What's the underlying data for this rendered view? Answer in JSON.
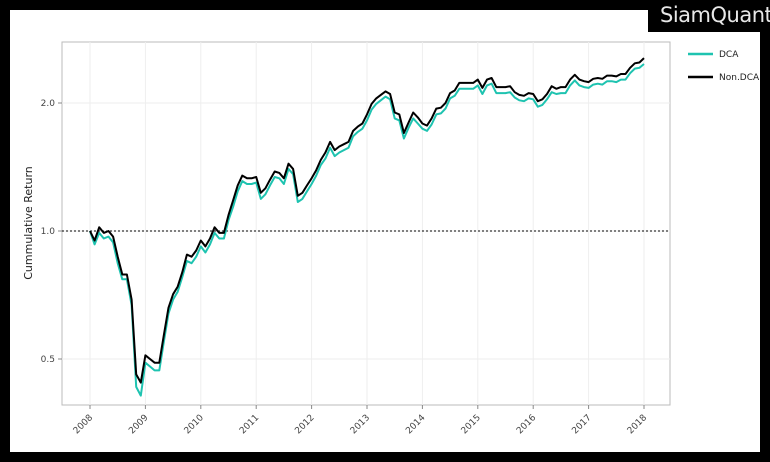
{
  "brand": "SiamQuant",
  "colors": {
    "DCA": "#1ec3b0",
    "Non.DCA": "#000000"
  },
  "chart_data": {
    "type": "line",
    "title": "",
    "xlabel": "",
    "ylabel": "Cummulative Return",
    "y_scale": "log",
    "ylim": [
      0.36,
      2.75
    ],
    "xlim": [
      "2007-07",
      "2018-07"
    ],
    "grid": true,
    "legend": "right",
    "reference_line": {
      "y": 1.0,
      "style": "dashed"
    },
    "x_ticks": [
      "2008",
      "2009",
      "2010",
      "2011",
      "2012",
      "2013",
      "2014",
      "2015",
      "2016",
      "2017",
      "2018"
    ],
    "y_ticks": [
      {
        "value": 0.5,
        "label": "0.5"
      },
      {
        "value": 1.0,
        "label": "1.0"
      },
      {
        "value": 2.0,
        "label": "2.0"
      }
    ],
    "x": [
      "2008-01",
      "2008-02",
      "2008-03",
      "2008-04",
      "2008-05",
      "2008-06",
      "2008-07",
      "2008-08",
      "2008-09",
      "2008-10",
      "2008-11",
      "2008-12",
      "2009-01",
      "2009-02",
      "2009-03",
      "2009-04",
      "2009-05",
      "2009-06",
      "2009-07",
      "2009-08",
      "2009-09",
      "2009-10",
      "2009-11",
      "2009-12",
      "2010-01",
      "2010-02",
      "2010-03",
      "2010-04",
      "2010-05",
      "2010-06",
      "2010-07",
      "2010-08",
      "2010-09",
      "2010-10",
      "2010-11",
      "2010-12",
      "2011-01",
      "2011-02",
      "2011-03",
      "2011-04",
      "2011-05",
      "2011-06",
      "2011-07",
      "2011-08",
      "2011-09",
      "2011-10",
      "2011-11",
      "2011-12",
      "2012-01",
      "2012-02",
      "2012-03",
      "2012-04",
      "2012-05",
      "2012-06",
      "2012-07",
      "2012-08",
      "2012-09",
      "2012-10",
      "2012-11",
      "2012-12",
      "2013-01",
      "2013-02",
      "2013-03",
      "2013-04",
      "2013-05",
      "2013-06",
      "2013-07",
      "2013-08",
      "2013-09",
      "2013-10",
      "2013-11",
      "2013-12",
      "2014-01",
      "2014-02",
      "2014-03",
      "2014-04",
      "2014-05",
      "2014-06",
      "2014-07",
      "2014-08",
      "2014-09",
      "2014-10",
      "2014-11",
      "2014-12",
      "2015-01",
      "2015-02",
      "2015-03",
      "2015-04",
      "2015-05",
      "2015-06",
      "2015-07",
      "2015-08",
      "2015-09",
      "2015-10",
      "2015-11",
      "2015-12",
      "2016-01",
      "2016-02",
      "2016-03",
      "2016-04",
      "2016-05",
      "2016-06",
      "2016-07",
      "2016-08",
      "2016-09",
      "2016-10",
      "2016-11",
      "2016-12",
      "2017-01",
      "2017-02",
      "2017-03",
      "2017-04",
      "2017-05",
      "2017-06",
      "2017-07",
      "2017-08",
      "2017-09",
      "2017-10",
      "2017-11",
      "2017-12",
      "2018-01"
    ],
    "series": [
      {
        "name": "DCA",
        "values": [
          1.0,
          0.93,
          0.99,
          0.96,
          0.97,
          0.94,
          0.84,
          0.77,
          0.77,
          0.67,
          0.43,
          0.41,
          0.49,
          0.48,
          0.47,
          0.47,
          0.55,
          0.64,
          0.69,
          0.72,
          0.78,
          0.85,
          0.84,
          0.87,
          0.92,
          0.89,
          0.93,
          0.99,
          0.96,
          0.96,
          1.06,
          1.14,
          1.24,
          1.31,
          1.29,
          1.29,
          1.3,
          1.19,
          1.22,
          1.28,
          1.34,
          1.33,
          1.29,
          1.4,
          1.36,
          1.17,
          1.19,
          1.24,
          1.29,
          1.35,
          1.43,
          1.48,
          1.57,
          1.5,
          1.53,
          1.55,
          1.57,
          1.67,
          1.71,
          1.74,
          1.82,
          1.93,
          1.99,
          2.03,
          2.07,
          2.04,
          1.84,
          1.82,
          1.65,
          1.75,
          1.84,
          1.79,
          1.74,
          1.72,
          1.78,
          1.88,
          1.89,
          1.94,
          2.05,
          2.08,
          2.16,
          2.16,
          2.16,
          2.16,
          2.2,
          2.1,
          2.2,
          2.22,
          2.11,
          2.11,
          2.11,
          2.12,
          2.06,
          2.03,
          2.02,
          2.05,
          2.04,
          1.96,
          1.98,
          2.04,
          2.12,
          2.1,
          2.11,
          2.11,
          2.2,
          2.26,
          2.2,
          2.18,
          2.17,
          2.21,
          2.22,
          2.21,
          2.25,
          2.25,
          2.24,
          2.27,
          2.27,
          2.35,
          2.41,
          2.42,
          2.47
        ]
      },
      {
        "name": "Non.DCA",
        "values": [
          1.0,
          0.95,
          1.02,
          0.99,
          1.0,
          0.97,
          0.87,
          0.79,
          0.79,
          0.69,
          0.46,
          0.44,
          0.51,
          0.5,
          0.49,
          0.49,
          0.57,
          0.66,
          0.71,
          0.74,
          0.8,
          0.88,
          0.87,
          0.9,
          0.95,
          0.92,
          0.96,
          1.02,
          0.99,
          0.99,
          1.09,
          1.18,
          1.28,
          1.35,
          1.33,
          1.33,
          1.34,
          1.23,
          1.26,
          1.32,
          1.38,
          1.37,
          1.33,
          1.44,
          1.4,
          1.21,
          1.23,
          1.28,
          1.33,
          1.39,
          1.47,
          1.53,
          1.62,
          1.55,
          1.58,
          1.6,
          1.62,
          1.72,
          1.76,
          1.79,
          1.88,
          1.99,
          2.05,
          2.09,
          2.13,
          2.1,
          1.9,
          1.88,
          1.7,
          1.8,
          1.9,
          1.85,
          1.79,
          1.77,
          1.84,
          1.94,
          1.95,
          2.0,
          2.11,
          2.14,
          2.23,
          2.23,
          2.23,
          2.23,
          2.27,
          2.17,
          2.27,
          2.29,
          2.18,
          2.18,
          2.18,
          2.19,
          2.12,
          2.09,
          2.08,
          2.11,
          2.1,
          2.02,
          2.04,
          2.1,
          2.19,
          2.16,
          2.18,
          2.18,
          2.27,
          2.33,
          2.27,
          2.25,
          2.24,
          2.28,
          2.29,
          2.28,
          2.32,
          2.32,
          2.31,
          2.34,
          2.34,
          2.42,
          2.48,
          2.49,
          2.55
        ]
      }
    ]
  }
}
